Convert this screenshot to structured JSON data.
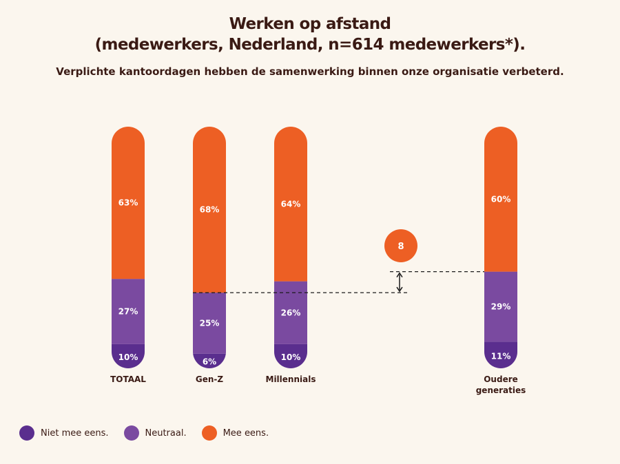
{
  "title_line1": "Werken op afstand",
  "title_line2": "(medewerkers, Nederland, n=614 medewerkers*).",
  "subtitle": "Verplichte kantoordagen hebben de samenwerking binnen onze organisatie verbeterd.",
  "colors": {
    "niet": "#5a2e8e",
    "neutraal": "#7a4aa0",
    "mee": "#ed5f24",
    "text": "#3a1a14",
    "background": "#fbf6ee"
  },
  "legend": [
    {
      "label": "Niet mee eens.",
      "color": "#5a2e8e"
    },
    {
      "label": "Neutraal.",
      "color": "#7a4aa0"
    },
    {
      "label": "Mee eens.",
      "color": "#ed5f24"
    }
  ],
  "chart_data": {
    "type": "bar",
    "stacked": true,
    "categories": [
      "TOTAAL",
      "Gen-Z",
      "Millennials",
      "Oudere generaties"
    ],
    "series": [
      {
        "name": "Niet mee eens.",
        "values": [
          10,
          6,
          10,
          11
        ],
        "labels": [
          "10%",
          "6%",
          "10%",
          "11%"
        ]
      },
      {
        "name": "Neutraal.",
        "values": [
          27,
          25,
          26,
          29
        ],
        "labels": [
          "27%",
          "25%",
          "26%",
          "29%"
        ]
      },
      {
        "name": "Mee eens.",
        "values": [
          63,
          68,
          64,
          60
        ],
        "labels": [
          "63%",
          "68%",
          "64%",
          "60%"
        ]
      }
    ],
    "annotation": {
      "label": "8",
      "from_category": "Gen-Z",
      "to_category": "Oudere generaties",
      "description": "difference in Mee eens between Gen-Z and Oudere generaties"
    },
    "legend_position": "bottom-left",
    "grid": false
  }
}
